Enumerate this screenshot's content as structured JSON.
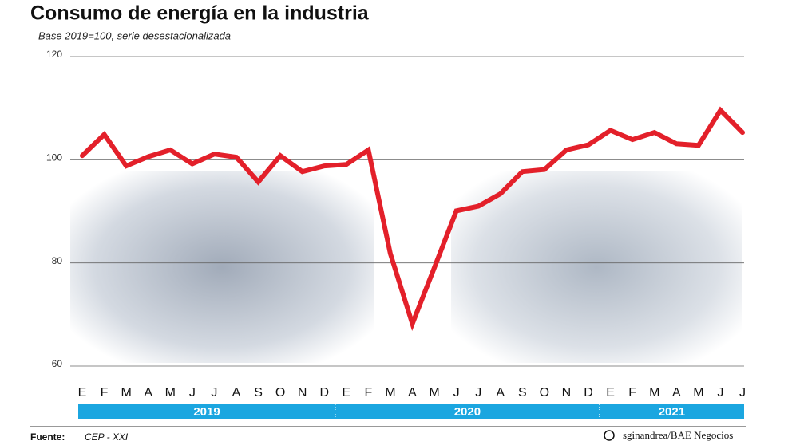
{
  "chart_data": {
    "type": "line",
    "title": "Consumo de energía en la industria",
    "subtitle": "Base 2019=100, serie desestacionalizada",
    "categories": [
      "E",
      "F",
      "M",
      "A",
      "M",
      "J",
      "J",
      "A",
      "S",
      "O",
      "N",
      "D",
      "E",
      "F",
      "M",
      "A",
      "M",
      "J",
      "J",
      "A",
      "S",
      "O",
      "N",
      "D",
      "E",
      "F",
      "M",
      "A",
      "M",
      "J",
      "J"
    ],
    "year_labels": [
      "2019",
      "2020",
      "2021"
    ],
    "series": [
      {
        "color": "#e3202a",
        "values": [
          100.8,
          104.9,
          98.8,
          100.6,
          101.9,
          99.2,
          101.1,
          100.5,
          95.7,
          100.8,
          97.7,
          98.8,
          99.1,
          101.9,
          81.8,
          68.2,
          79.1,
          90.1,
          91.0,
          93.4,
          97.7,
          98.1,
          101.9,
          102.9,
          105.7,
          103.9,
          105.3,
          103.1,
          102.8,
          109.6,
          105.3
        ]
      }
    ],
    "ylim": [
      60,
      120
    ],
    "yticks": [
      60,
      80,
      100,
      120
    ],
    "grid": true,
    "source_label": "Fuente:",
    "source": "CEP - XXI",
    "credit": "sginandrea/BAE Negocios"
  }
}
